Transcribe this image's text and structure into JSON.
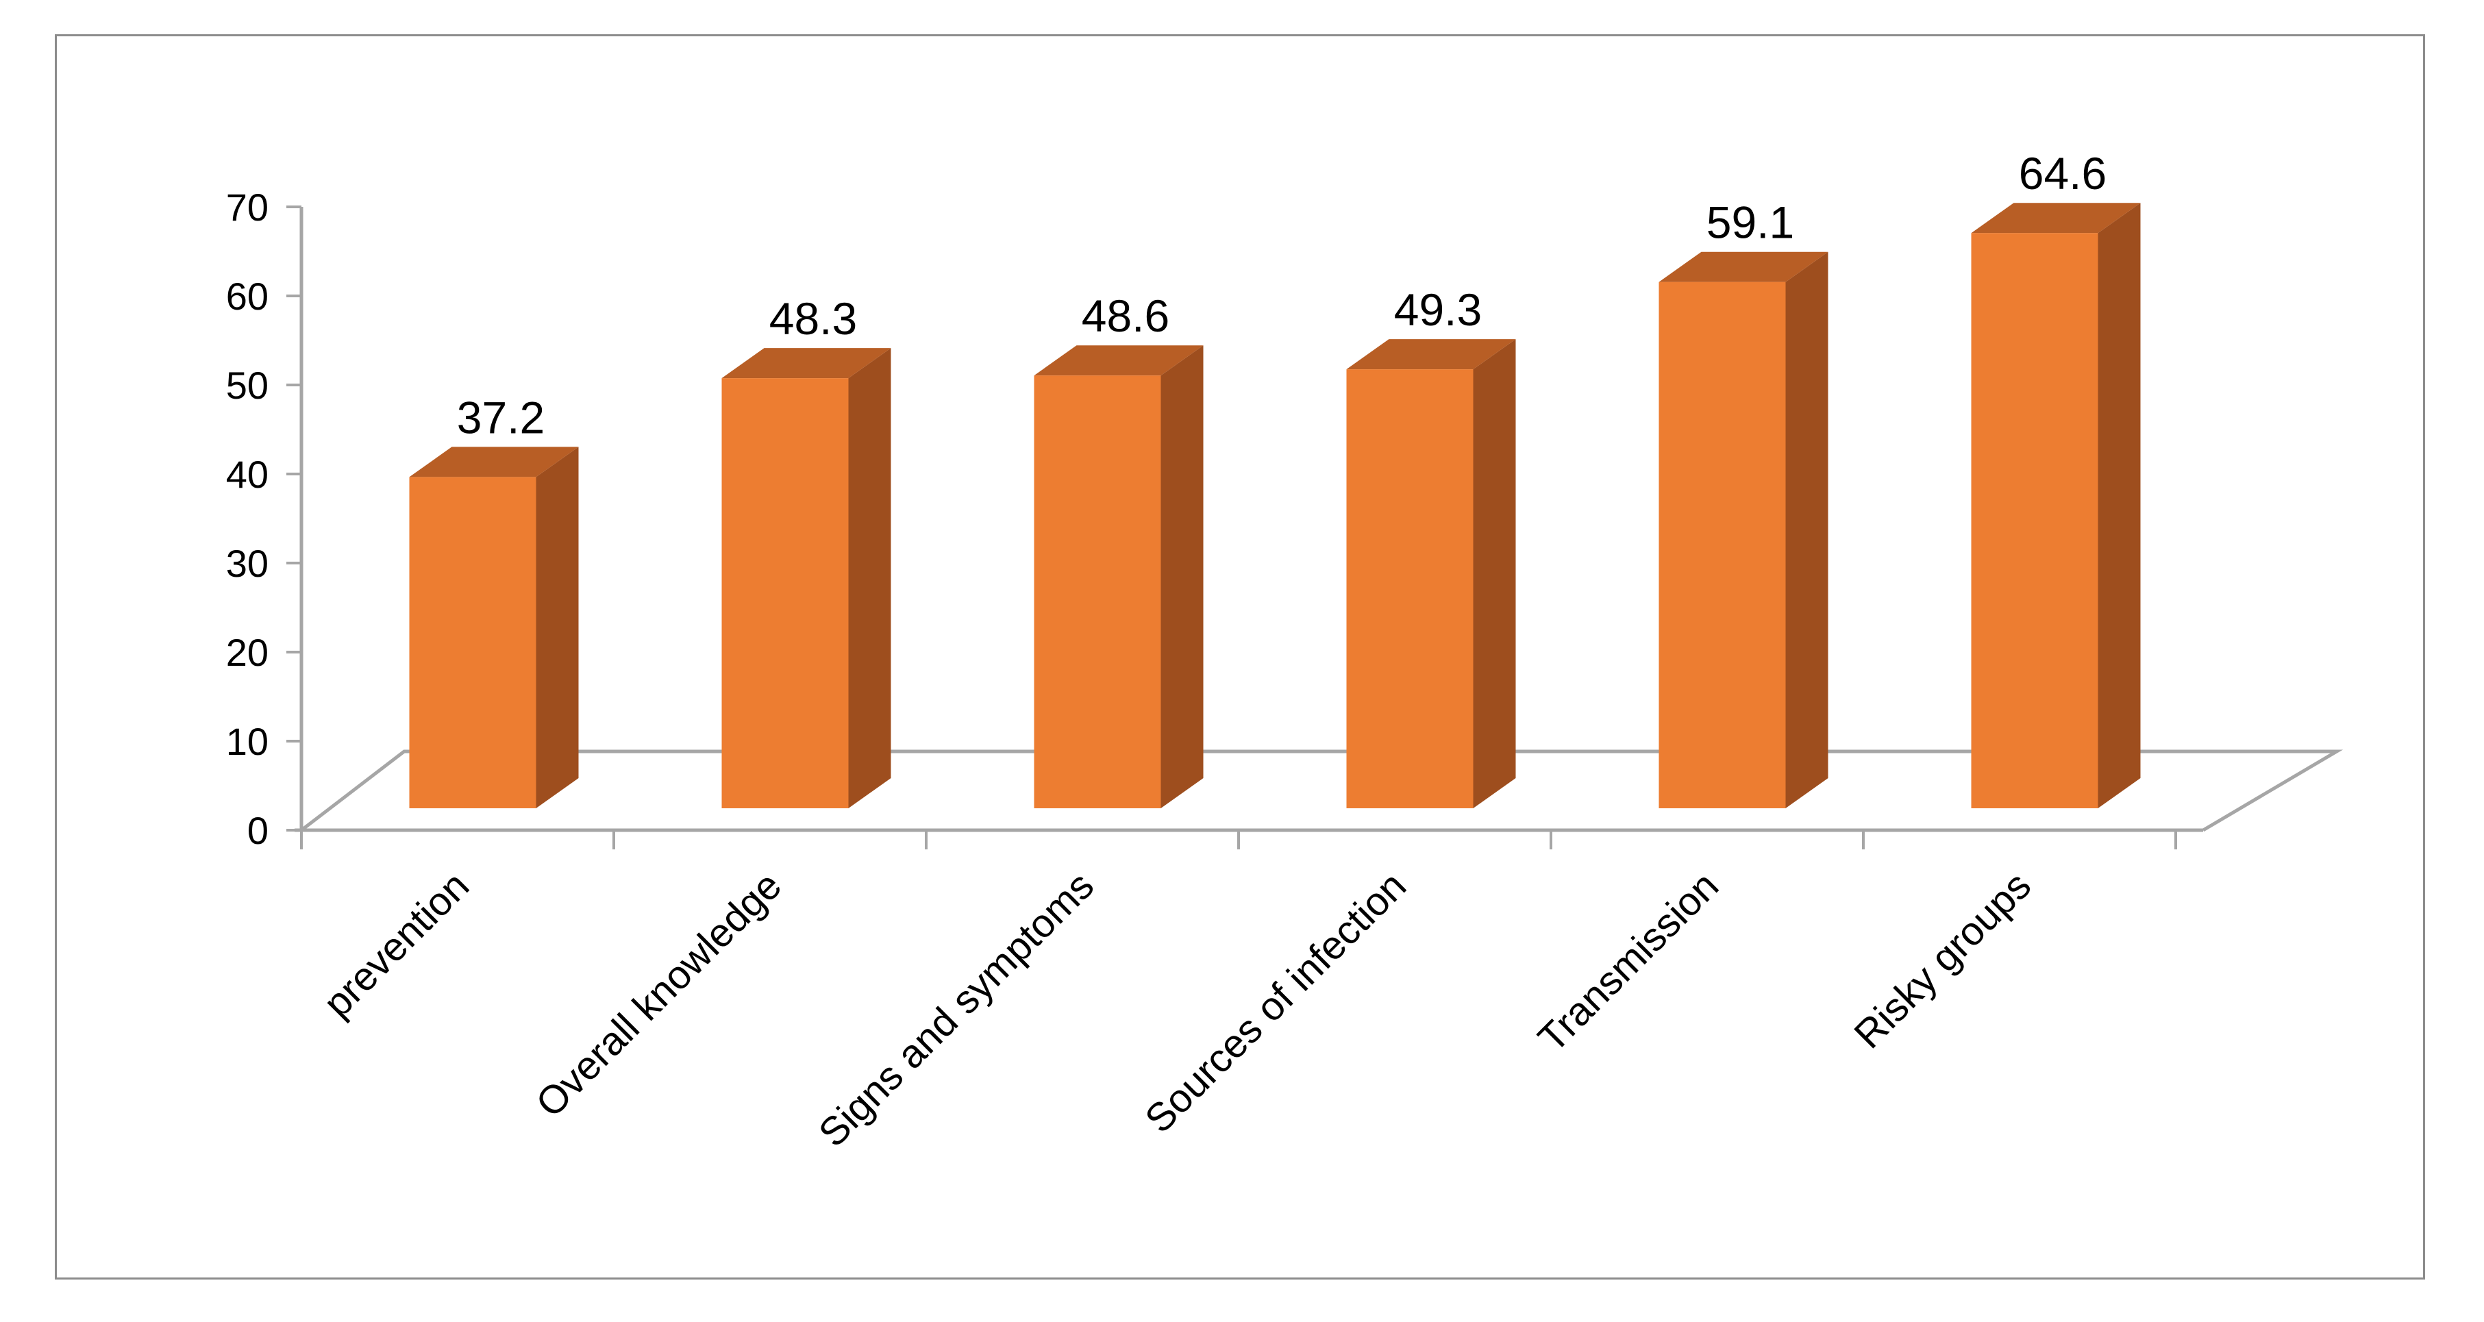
{
  "chart_data": {
    "type": "bar",
    "style": "3d-column",
    "categories": [
      "prevention",
      "Overall knowledge",
      "Signs and symptoms",
      "Sources of infection",
      "Transmission",
      "Risky groups"
    ],
    "values": [
      37.2,
      48.3,
      48.6,
      49.3,
      59.1,
      64.6
    ],
    "data_labels": [
      "37.2",
      "48.3",
      "48.6",
      "49.3",
      "59.1",
      "64.6"
    ],
    "y_ticks": [
      "0",
      "10",
      "20",
      "30",
      "40",
      "50",
      "60",
      "70"
    ],
    "ylim": [
      0,
      70
    ],
    "grid": false,
    "legend": "none",
    "colors": {
      "bar_front": "#ED7D31",
      "bar_side": "#9E4E1E",
      "bar_top": "#B85E25",
      "floor_line": "#A6A6A6",
      "axis_line": "#A6A6A6",
      "frame_border": "#8C8C8C"
    }
  }
}
